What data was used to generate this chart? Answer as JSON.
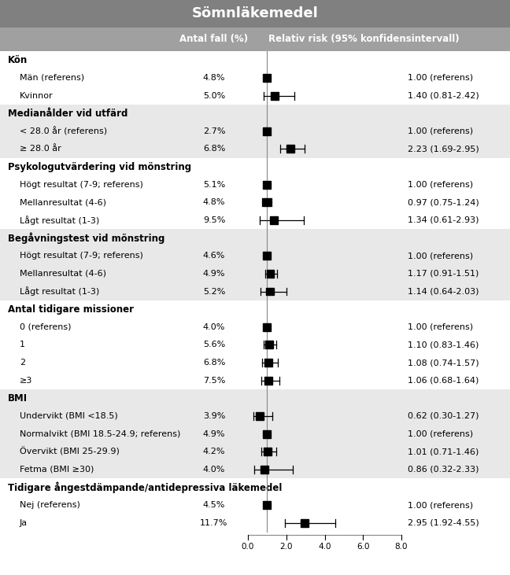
{
  "title": "Sömnläkemedel",
  "col1_header": "Antal fall (%)",
  "col2_header": "Relativ risk (95% konfidensintervall)",
  "rows": [
    {
      "label": "Kön",
      "pct": "",
      "rr": null,
      "lo": null,
      "hi": null,
      "rr_text": "",
      "is_section": true,
      "section_idx": 0
    },
    {
      "label": "Män (referens)",
      "pct": "4.8%",
      "rr": 1.0,
      "lo": 1.0,
      "hi": 1.0,
      "rr_text": "1.00 (referens)",
      "is_section": false,
      "section_idx": 0
    },
    {
      "label": "Kvinnor",
      "pct": "5.0%",
      "rr": 1.4,
      "lo": 0.81,
      "hi": 2.42,
      "rr_text": "1.40 (0.81-2.42)",
      "is_section": false,
      "section_idx": 0
    },
    {
      "label": "Medianålder vid utfärd",
      "pct": "",
      "rr": null,
      "lo": null,
      "hi": null,
      "rr_text": "",
      "is_section": true,
      "section_idx": 1
    },
    {
      "label": "< 28.0 år (referens)",
      "pct": "2.7%",
      "rr": 1.0,
      "lo": 1.0,
      "hi": 1.0,
      "rr_text": "1.00 (referens)",
      "is_section": false,
      "section_idx": 1
    },
    {
      "label": "≥ 28.0 år",
      "pct": "6.8%",
      "rr": 2.23,
      "lo": 1.69,
      "hi": 2.95,
      "rr_text": "2.23 (1.69-2.95)",
      "is_section": false,
      "section_idx": 1
    },
    {
      "label": "Psykologutvärdering vid mönstring",
      "pct": "",
      "rr": null,
      "lo": null,
      "hi": null,
      "rr_text": "",
      "is_section": true,
      "section_idx": 2
    },
    {
      "label": "Högt resultat (7-9; referens)",
      "pct": "5.1%",
      "rr": 1.0,
      "lo": 1.0,
      "hi": 1.0,
      "rr_text": "1.00 (referens)",
      "is_section": false,
      "section_idx": 2
    },
    {
      "label": "Mellanresultat (4-6)",
      "pct": "4.8%",
      "rr": 0.97,
      "lo": 0.75,
      "hi": 1.24,
      "rr_text": "0.97 (0.75-1.24)",
      "is_section": false,
      "section_idx": 2
    },
    {
      "label": "Lågt resultat (1-3)",
      "pct": "9.5%",
      "rr": 1.34,
      "lo": 0.61,
      "hi": 2.93,
      "rr_text": "1.34 (0.61-2.93)",
      "is_section": false,
      "section_idx": 2
    },
    {
      "label": "Begåvningstest vid mönstring",
      "pct": "",
      "rr": null,
      "lo": null,
      "hi": null,
      "rr_text": "",
      "is_section": true,
      "section_idx": 3
    },
    {
      "label": "Högt resultat (7-9; referens)",
      "pct": "4.6%",
      "rr": 1.0,
      "lo": 1.0,
      "hi": 1.0,
      "rr_text": "1.00 (referens)",
      "is_section": false,
      "section_idx": 3
    },
    {
      "label": "Mellanresultat (4-6)",
      "pct": "4.9%",
      "rr": 1.17,
      "lo": 0.91,
      "hi": 1.51,
      "rr_text": "1.17 (0.91-1.51)",
      "is_section": false,
      "section_idx": 3
    },
    {
      "label": "Lågt resultat (1-3)",
      "pct": "5.2%",
      "rr": 1.14,
      "lo": 0.64,
      "hi": 2.03,
      "rr_text": "1.14 (0.64-2.03)",
      "is_section": false,
      "section_idx": 3
    },
    {
      "label": "Antal tidigare missioner",
      "pct": "",
      "rr": null,
      "lo": null,
      "hi": null,
      "rr_text": "",
      "is_section": true,
      "section_idx": 4
    },
    {
      "label": "0 (referens)",
      "pct": "4.0%",
      "rr": 1.0,
      "lo": 1.0,
      "hi": 1.0,
      "rr_text": "1.00 (referens)",
      "is_section": false,
      "section_idx": 4
    },
    {
      "label": "1",
      "pct": "5.6%",
      "rr": 1.1,
      "lo": 0.83,
      "hi": 1.46,
      "rr_text": "1.10 (0.83-1.46)",
      "is_section": false,
      "section_idx": 4
    },
    {
      "label": "2",
      "pct": "6.8%",
      "rr": 1.08,
      "lo": 0.74,
      "hi": 1.57,
      "rr_text": "1.08 (0.74-1.57)",
      "is_section": false,
      "section_idx": 4
    },
    {
      "label": "≥3",
      "pct": "7.5%",
      "rr": 1.06,
      "lo": 0.68,
      "hi": 1.64,
      "rr_text": "1.06 (0.68-1.64)",
      "is_section": false,
      "section_idx": 4
    },
    {
      "label": "BMI",
      "pct": "",
      "rr": null,
      "lo": null,
      "hi": null,
      "rr_text": "",
      "is_section": true,
      "section_idx": 5
    },
    {
      "label": "Undervikt (BMI <18.5)",
      "pct": "3.9%",
      "rr": 0.62,
      "lo": 0.3,
      "hi": 1.27,
      "rr_text": "0.62 (0.30-1.27)",
      "is_section": false,
      "section_idx": 5
    },
    {
      "label": "Normalvikt (BMI 18.5-24.9; referens)",
      "pct": "4.9%",
      "rr": 1.0,
      "lo": 1.0,
      "hi": 1.0,
      "rr_text": "1.00 (referens)",
      "is_section": false,
      "section_idx": 5
    },
    {
      "label": "Övervikt (BMI 25-29.9)",
      "pct": "4.2%",
      "rr": 1.01,
      "lo": 0.71,
      "hi": 1.46,
      "rr_text": "1.01 (0.71-1.46)",
      "is_section": false,
      "section_idx": 5
    },
    {
      "label": "Fetma (BMI ≥30)",
      "pct": "4.0%",
      "rr": 0.86,
      "lo": 0.32,
      "hi": 2.33,
      "rr_text": "0.86 (0.32-2.33)",
      "is_section": false,
      "section_idx": 5
    },
    {
      "label": "Tidigare ångestdämpande/antidepressiva läkemedel",
      "pct": "",
      "rr": null,
      "lo": null,
      "hi": null,
      "rr_text": "",
      "is_section": true,
      "section_idx": 6
    },
    {
      "label": "Nej (referens)",
      "pct": "4.5%",
      "rr": 1.0,
      "lo": 1.0,
      "hi": 1.0,
      "rr_text": "1.00 (referens)",
      "is_section": false,
      "section_idx": 6
    },
    {
      "label": "Ja",
      "pct": "11.7%",
      "rr": 2.95,
      "lo": 1.92,
      "hi": 4.55,
      "rr_text": "2.95 (1.92-4.55)",
      "is_section": false,
      "section_idx": 6
    }
  ],
  "xmin": 0.0,
  "xmax": 8.0,
  "xticks": [
    0.0,
    2.0,
    4.0,
    6.0,
    8.0
  ],
  "xtick_labels": [
    "0.0",
    "2.0",
    "4.0",
    "6.0",
    "8.0"
  ],
  "title_bg": "#808080",
  "title_color": "#ffffff",
  "header_bg": "#a0a0a0",
  "header_color": "#ffffff",
  "sec_colors": [
    "#ffffff",
    "#e8e8e8"
  ],
  "marker_color": "#000000",
  "label_fontsize": 8.0,
  "section_fontsize": 8.5,
  "header_fontsize": 8.5,
  "title_fontsize": 13,
  "tick_fontsize": 7.5
}
